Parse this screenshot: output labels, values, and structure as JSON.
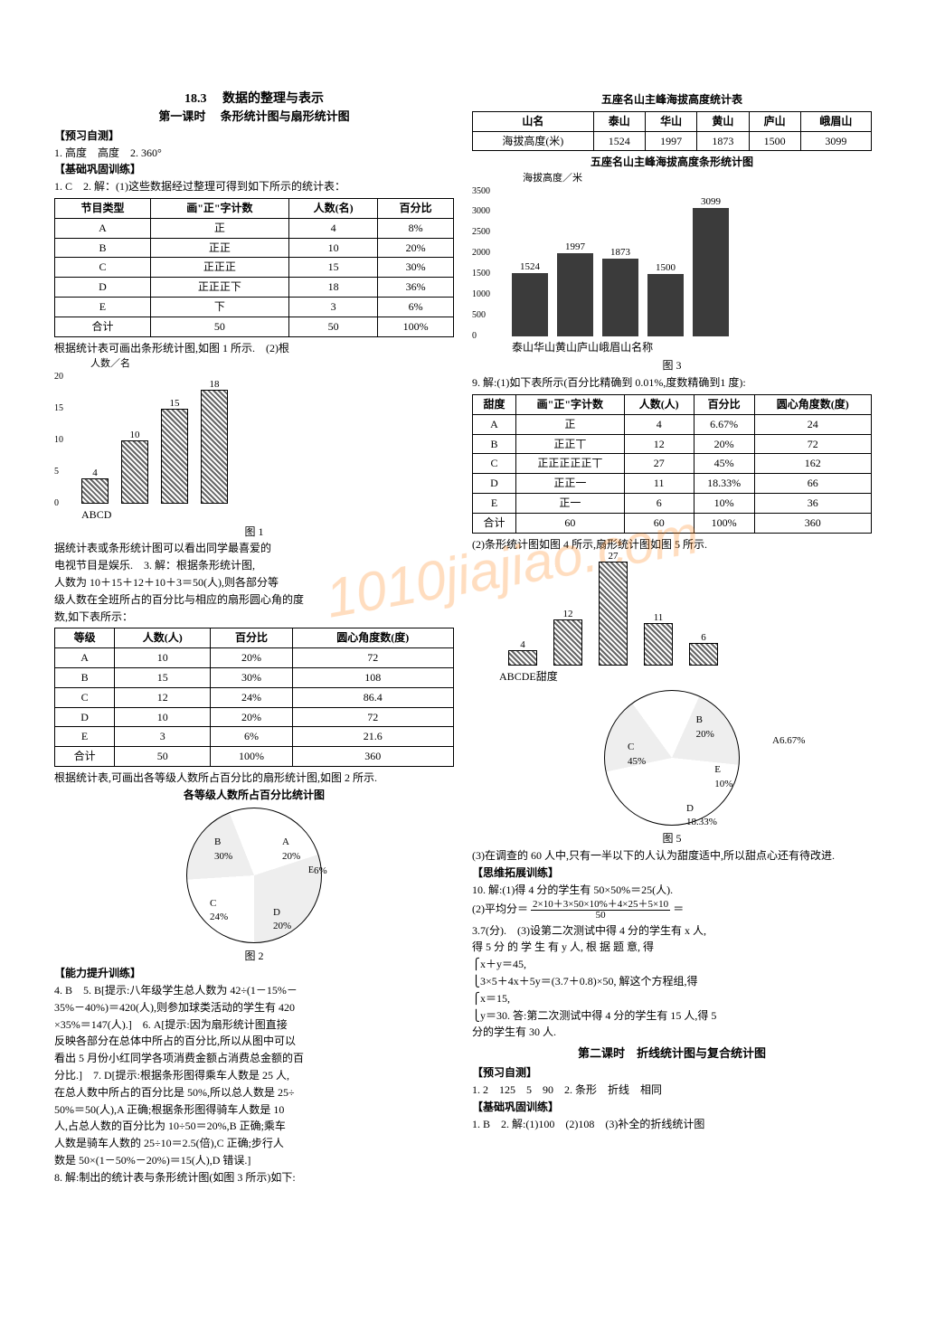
{
  "title": {
    "section_no": "18.3",
    "section_name": "数据的整理与表示",
    "lesson": "第一课时",
    "lesson_name": "条形统计图与扇形统计图"
  },
  "preview": {
    "heading": "【预习自测】",
    "line1": "1. 高度　高度　2. 360°"
  },
  "basic": {
    "heading": "【基础巩固训练】",
    "line1": "1. C　2. 解：(1)这些数据经过整理可得到如下所示的统计表："
  },
  "table1": {
    "headers": [
      "节目类型",
      "画\"正\"字计数",
      "人数(名)",
      "百分比"
    ],
    "rows": [
      [
        "A",
        "正",
        "4",
        "8%"
      ],
      [
        "B",
        "正正",
        "10",
        "20%"
      ],
      [
        "C",
        "正正正",
        "15",
        "30%"
      ],
      [
        "D",
        "正正正下",
        "18",
        "36%"
      ],
      [
        "E",
        "下",
        "3",
        "6%"
      ],
      [
        "合计",
        "50",
        "50",
        "100%"
      ]
    ]
  },
  "after_t1": "根据统计表可画出条形统计图,如图 1 所示.　(2)根",
  "chart1": {
    "ylabel": "人数／名",
    "ymax": 20,
    "ytick_step": 5,
    "yticks": [
      0,
      5,
      10,
      15,
      20
    ],
    "categories": [
      "A",
      "B",
      "C",
      "D"
    ],
    "values": [
      4,
      10,
      15,
      18
    ],
    "label_vals": [
      "4",
      "10",
      "15",
      "18"
    ],
    "caption": "图 1"
  },
  "text_block1": [
    "据统计表或条形统计图可以看出同学最喜爱的",
    "电视节目是娱乐.　3. 解：根据条形统计图,",
    "人数为 10＋15＋12＋10＋3＝50(人),则各部分等",
    "级人数在全班所占的百分比与相应的扇形圆心角的度",
    "数,如下表所示："
  ],
  "table2": {
    "headers": [
      "等级",
      "人数(人)",
      "百分比",
      "圆心角度数(度)"
    ],
    "rows": [
      [
        "A",
        "10",
        "20%",
        "72"
      ],
      [
        "B",
        "15",
        "30%",
        "108"
      ],
      [
        "C",
        "12",
        "24%",
        "86.4"
      ],
      [
        "D",
        "10",
        "20%",
        "72"
      ],
      [
        "E",
        "3",
        "6%",
        "21.6"
      ],
      [
        "合计",
        "50",
        "100%",
        "360"
      ]
    ]
  },
  "after_t2": "根据统计表,可画出各等级人数所占百分比的扇形统计图,如图 2 所示.",
  "pie1": {
    "title": "各等级人数所占百分比统计图",
    "segments": [
      {
        "label": "A",
        "pct": "20%",
        "color": "#ffffff"
      },
      {
        "label": "B",
        "pct": "30%",
        "color": "#ffffff"
      },
      {
        "label": "C",
        "pct": "24%",
        "color": "#ffffff"
      },
      {
        "label": "D",
        "pct": "20%",
        "color": "#ffffff"
      },
      {
        "label": "E",
        "pct": "6%",
        "color": "#ffffff"
      }
    ],
    "caption": "图 2"
  },
  "ability": {
    "heading": "【能力提升训练】",
    "lines": [
      "4. B　5. B[提示:八年级学生总人数为 42÷(1－15%－",
      "35%－40%)＝420(人),则参加球类活动的学生有 420",
      "×35%＝147(人).]　6. A[提示:因为扇形统计图直接",
      "反映各部分在总体中所占的百分比,所以从图中可以",
      "看出 5 月份小红同学各项消费金额占消费总金额的百",
      "分比.]　7. D[提示:根据条形图得乘车人数是 25 人,",
      "在总人数中所占的百分比是 50%,所以总人数是 25÷",
      "50%＝50(人),A 正确;根据条形图得骑车人数是 10",
      "人,占总人数的百分比为 10÷50＝20%,B 正确;乘车",
      "人数是骑车人数的 25÷10＝2.5(倍),C 正确;步行人",
      "数是 50×(1－50%－20%)＝15(人),D 错误.]",
      "8. 解:制出的统计表与条形统计图(如图 3 所示)如下:"
    ]
  },
  "table_mountain": {
    "title": "五座名山主峰海拔高度统计表",
    "headers": [
      "山名",
      "泰山",
      "华山",
      "黄山",
      "庐山",
      "峨眉山"
    ],
    "row": [
      "海拔高度(米)",
      "1524",
      "1997",
      "1873",
      "1500",
      "3099"
    ]
  },
  "chart_mountain": {
    "title": "五座名山主峰海拔高度条形统计图",
    "ylabel": "海拔高度／米",
    "ymax": 3500,
    "yticks": [
      0,
      500,
      1000,
      1500,
      2000,
      2500,
      3000,
      3500
    ],
    "categories": [
      "泰山",
      "华山",
      "黄山",
      "庐山",
      "峨眉山"
    ],
    "values": [
      1524,
      1997,
      1873,
      1500,
      3099
    ],
    "xlabel_extra": "名称",
    "caption": "图 3"
  },
  "q9_intro": "9. 解:(1)如下表所示(百分比精确到 0.01%,度数精确到1 度):",
  "table3": {
    "headers": [
      "甜度",
      "画\"正\"字计数",
      "人数(人)",
      "百分比",
      "圆心角度数(度)"
    ],
    "rows": [
      [
        "A",
        "正",
        "4",
        "6.67%",
        "24"
      ],
      [
        "B",
        "正正丅",
        "12",
        "20%",
        "72"
      ],
      [
        "C",
        "正正正正正丅",
        "27",
        "45%",
        "162"
      ],
      [
        "D",
        "正正一",
        "11",
        "18.33%",
        "66"
      ],
      [
        "E",
        "正一",
        "6",
        "10%",
        "36"
      ],
      [
        "合计",
        "60",
        "60",
        "100%",
        "360"
      ]
    ]
  },
  "q9_after": "(2)条形统计图如图 4 所示,扇形统计图如图 5 所示.",
  "chart4": {
    "ylabel": "人数",
    "categories": [
      "A",
      "B",
      "C",
      "D",
      "E"
    ],
    "values": [
      4,
      12,
      27,
      11,
      6
    ],
    "ymax": 28,
    "xlabel_extra": "甜度"
  },
  "pie2": {
    "segments": [
      {
        "label": "A",
        "pct": "6.67%"
      },
      {
        "label": "B",
        "pct": "20%"
      },
      {
        "label": "C",
        "pct": "45%"
      },
      {
        "label": "D",
        "pct": "18.33%"
      },
      {
        "label": "E",
        "pct": "10%"
      }
    ],
    "caption": "图 5"
  },
  "q9_3": "(3)在调查的 60 人中,只有一半以下的人认为甜度适中,所以甜点心还有待改进.",
  "extend": {
    "heading": "【思维拓展训练】",
    "line_a": "10. 解:(1)得 4 分的学生有 50×50%＝25(人).",
    "line_b_pre": "(2)平均分＝",
    "frac_num": "2×10＋3×50×10%＋4×25＋5×10",
    "frac_den": "50",
    "line_b_post": "＝",
    "lines_rest": [
      "3.7(分).　(3)设第二次测试中得 4 分的学生有 x 人,",
      "得 5 分 的 学 生 有 y 人, 根 据 题 意, 得",
      "⎧x＋y＝45,",
      "⎩3×5＋4x＋5y＝(3.7＋0.8)×50, 解这个方程组,得",
      "⎧x＝15,",
      "⎩y＝30. 答:第二次测试中得 4 分的学生有 15 人,得 5",
      "分的学生有 30 人."
    ]
  },
  "lesson2": {
    "title": "第二课时　折线统计图与复合统计图",
    "preview_heading": "【预习自测】",
    "preview_line": "1. 2　125　5　90　2. 条形　折线　相同",
    "basic_heading": "【基础巩固训练】",
    "basic_line": "1. B　2. 解:(1)100　(2)108　(3)补全的折线统计图"
  },
  "watermark": "1010jiajiao.com"
}
